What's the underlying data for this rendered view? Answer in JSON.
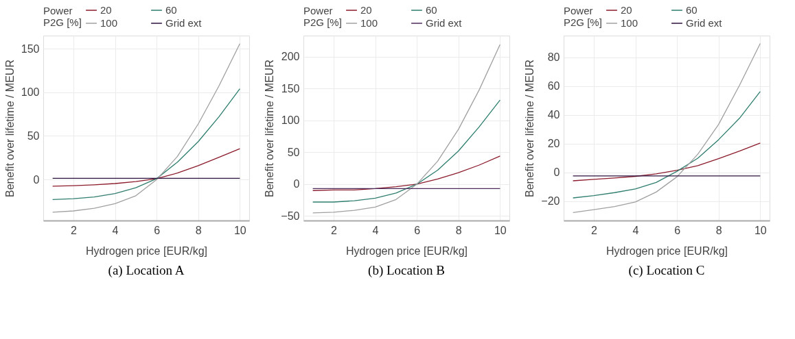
{
  "chart_data": [
    {
      "type": "line",
      "title": "(a) Location A",
      "xlabel": "Hydrogen price [EUR/kg]",
      "ylabel": "Benefit over lifetime / MEUR",
      "legend_title": "Power P2G [%]",
      "legend": "top left",
      "grid": true,
      "marker": "none",
      "line_style": "solid",
      "x": [
        1,
        2,
        3,
        4,
        5,
        6,
        7,
        8,
        9,
        10
      ],
      "xlim": [
        0.55,
        10.45
      ],
      "xticks": [
        2,
        4,
        6,
        8,
        10
      ],
      "ylim": [
        -47,
        165
      ],
      "yticks": [
        0,
        50,
        100,
        150
      ],
      "series": [
        {
          "name": "20",
          "color": "#8b1a2b",
          "values": [
            -7.6,
            -7,
            -6,
            -4.6,
            -2.3,
            1,
            7.4,
            15.9,
            25.5,
            35.4
          ]
        },
        {
          "name": "60",
          "color": "#2e7d6e",
          "values": [
            -23,
            -22,
            -20,
            -16,
            -9.4,
            1,
            20,
            43.5,
            72,
            104
          ]
        },
        {
          "name": "100",
          "color": "#a0a0a0",
          "values": [
            -37.5,
            -36,
            -33,
            -27.6,
            -18.6,
            0,
            26.5,
            63.7,
            107.5,
            155.8
          ]
        },
        {
          "name": "Grid ext",
          "color": "#2b0f3c",
          "values": [
            1.4,
            1.4,
            1.4,
            1.4,
            1.4,
            1.4,
            1.4,
            1.4,
            1.4,
            1.4
          ]
        }
      ]
    },
    {
      "type": "line",
      "title": "(b) Location B",
      "xlabel": "Hydrogen price [EUR/kg]",
      "ylabel": "Benefit over lifetime / MEUR",
      "legend_title": "Power P2G [%]",
      "legend": "top left",
      "grid": true,
      "marker": "none",
      "line_style": "solid",
      "x": [
        1,
        2,
        3,
        4,
        5,
        6,
        7,
        8,
        9,
        10
      ],
      "xlim": [
        0.55,
        10.45
      ],
      "xticks": [
        2,
        4,
        6,
        8,
        10
      ],
      "ylim": [
        -57,
        233
      ],
      "yticks": [
        -50,
        0,
        50,
        100,
        150,
        200
      ],
      "series": [
        {
          "name": "20",
          "color": "#8b1a2b",
          "values": [
            -10,
            -9,
            -9,
            -7,
            -4,
            0,
            8,
            18,
            30,
            44
          ]
        },
        {
          "name": "60",
          "color": "#2e7d6e",
          "values": [
            -28,
            -28,
            -26,
            -22,
            -14,
            0,
            22,
            52,
            90,
            132
          ]
        },
        {
          "name": "100",
          "color": "#a0a0a0",
          "values": [
            -45,
            -44,
            -41,
            -36,
            -24,
            0,
            36,
            86,
            148,
            219
          ]
        },
        {
          "name": "Grid ext",
          "color": "#4b2a5a",
          "values": [
            -7,
            -7,
            -7,
            -7,
            -7,
            -7,
            -7,
            -7,
            -7,
            -7
          ]
        }
      ]
    },
    {
      "type": "line",
      "title": "(c) Location C",
      "xlabel": "Hydrogen price [EUR/kg]",
      "ylabel": "Benefit over lifetime / MEUR",
      "legend_title": "Power P2G [%]",
      "legend": "top left",
      "grid": true,
      "marker": "none",
      "line_style": "solid",
      "x": [
        1,
        2,
        3,
        4,
        5,
        6,
        7,
        8,
        9,
        10
      ],
      "xlim": [
        0.55,
        10.45
      ],
      "xticks": [
        2,
        4,
        6,
        8,
        10
      ],
      "ylim": [
        -33.5,
        95
      ],
      "yticks": [
        -20,
        0,
        20,
        40,
        60,
        80
      ],
      "series": [
        {
          "name": "20",
          "color": "#8b1a2b",
          "values": [
            -5.9,
            -4.9,
            -3.9,
            -2.8,
            -1.1,
            1.4,
            4.6,
            9.5,
            14.7,
            20.3
          ]
        },
        {
          "name": "60",
          "color": "#2e7d6e",
          "values": [
            -17.8,
            -16.2,
            -14.1,
            -11.5,
            -7,
            0.7,
            9.8,
            22.7,
            37.5,
            56.2
          ]
        },
        {
          "name": "100",
          "color": "#a0a0a0",
          "values": [
            -28,
            -25.9,
            -23.8,
            -20.6,
            -13.7,
            -3.1,
            12.6,
            33.3,
            60.4,
            89.5
          ]
        },
        {
          "name": "Grid ext",
          "color": "#2b0f3c",
          "values": [
            -2.5,
            -2.5,
            -2.5,
            -2.5,
            -2.5,
            -2.5,
            -2.5,
            -2.5,
            -2.5,
            -2.5
          ]
        }
      ]
    }
  ]
}
